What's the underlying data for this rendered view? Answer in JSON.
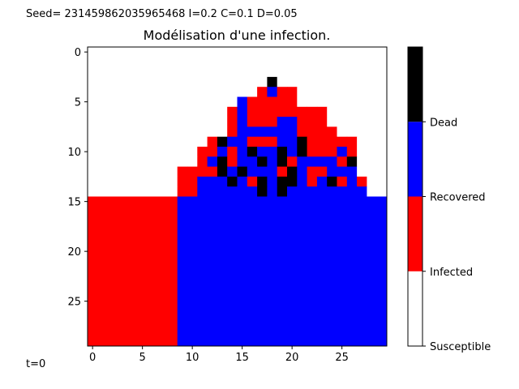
{
  "header_text": "Seed= 231459862035965468 I=0.2 C=0.1 D=0.05",
  "time_label": "t=0",
  "chart_data": {
    "type": "heatmap",
    "title": "Modélisation d'une infection.",
    "xlabel": "",
    "ylabel": "",
    "rows": 30,
    "cols": 30,
    "x_ticks": [
      0,
      5,
      10,
      15,
      20,
      25
    ],
    "y_ticks": [
      0,
      5,
      10,
      15,
      20,
      25
    ],
    "xlim": [
      -0.5,
      29.5
    ],
    "ylim": [
      29.5,
      -0.5
    ],
    "states": [
      "Susceptible",
      "Infected",
      "Recovered",
      "Dead"
    ],
    "colors": {
      "0": "#ffffff",
      "1": "#ff0000",
      "2": "#0000ff",
      "3": "#000000"
    },
    "colorbar": {
      "labels": [
        "Susceptible",
        "Infected",
        "Recovered",
        "Dead"
      ],
      "range": [
        0,
        4
      ],
      "tick_values": [
        0,
        1,
        2,
        3
      ],
      "segments": [
        {
          "from": 0,
          "to": 1,
          "color": "#ffffff"
        },
        {
          "from": 1,
          "to": 2,
          "color": "#ff0000"
        },
        {
          "from": 2,
          "to": 3,
          "color": "#0000ff"
        },
        {
          "from": 3,
          "to": 4,
          "color": "#000000"
        }
      ]
    },
    "grid": [
      "000000000000000000000000000000",
      "000000000000000000000000000000",
      "000000000000000000000000000000",
      "000000000000000000300000000000",
      "000000000000000001211000000000",
      "000000000000000211111000000000",
      "000000000000001211111111000000",
      "000000000000001211122111000000",
      "000000000000001222222111100000",
      "000000000000132211122311111000",
      "000000000001121232232311121000",
      "000000000001231223231222213000",
      "000000000111132322213211222000",
      "000000000112223213233212312100",
      "000000000112222223232222222200",
      "111111111222222222222222222222",
      "111111111222222222222222222222",
      "111111111222222222222222222222",
      "111111111222222222222222222222",
      "111111111222222222222222222222",
      "111111111222222222222222222222",
      "111111111222222222222222222222",
      "111111111222222222222222222222",
      "111111111222222222222222222222",
      "111111111222222222222222222222",
      "111111111222222222222222222222",
      "111111111222222222222222222222",
      "111111111222222222222222222222",
      "111111111222222222222222222222",
      "111111111222222222222222222222"
    ]
  }
}
